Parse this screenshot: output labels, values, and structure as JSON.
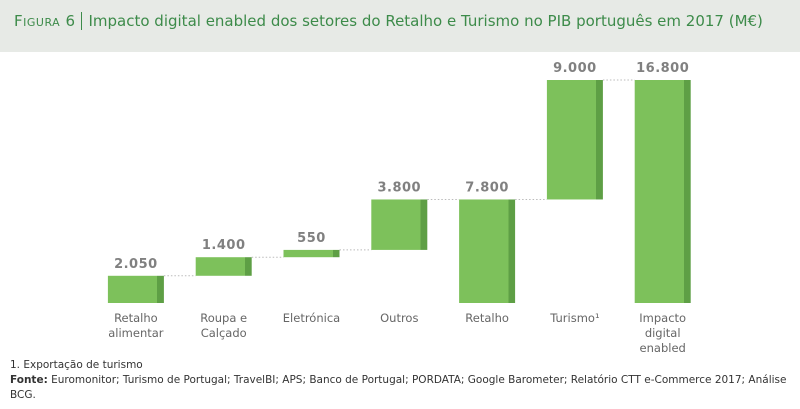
{
  "figure_label": "Figura 6",
  "chart_data": {
    "type": "waterfall",
    "title": "Impacto digital enabled dos setores do Retalho e Turismo no PIB português em 2017 (M€)",
    "categories": [
      "Retalho alimentar",
      "Roupa e Calçado",
      "Eletrónica",
      "Outros",
      "Retalho",
      "Turismo¹",
      "Impacto digital enabled"
    ],
    "values": [
      2050,
      1400,
      550,
      3800,
      7800,
      9000,
      16800
    ],
    "value_labels": [
      "2.050",
      "1.400",
      "550",
      "3.800",
      "7.800",
      "9.000",
      "16.800"
    ],
    "color": "#7dc15b",
    "edge_color": "#5e9f45"
  },
  "footnote": "1. Exportação de turismo",
  "source_label": "Fonte:",
  "source": "Euromonitor; Turismo de Portugal; TravelBI; APS; Banco de Portugal; PORDATA; Google Barometer; Relatório CTT e-Commerce 2017; Análise BCG."
}
